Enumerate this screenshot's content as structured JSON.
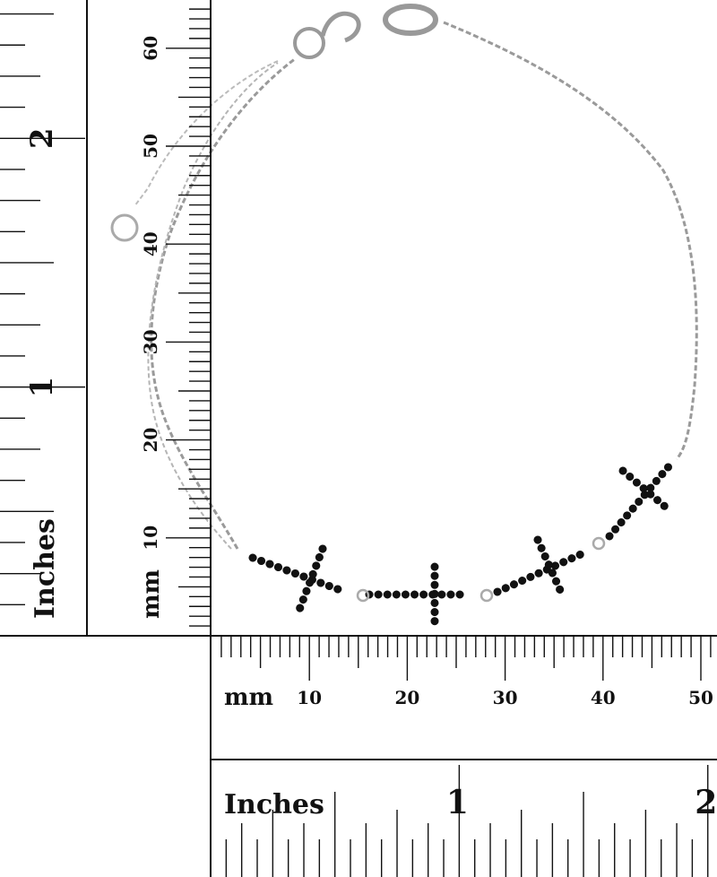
{
  "left_inch_ruler": {
    "label": "Inches",
    "marks": [
      "1",
      "2"
    ]
  },
  "left_mm_ruler": {
    "label": "mm",
    "marks": [
      "10",
      "20",
      "30",
      "40",
      "50",
      "60"
    ]
  },
  "bottom_mm_ruler": {
    "label": "mm",
    "marks": [
      "10",
      "20",
      "30",
      "40",
      "50"
    ]
  },
  "bottom_inch_ruler": {
    "label": "Inches",
    "marks": [
      "1",
      "2"
    ]
  }
}
